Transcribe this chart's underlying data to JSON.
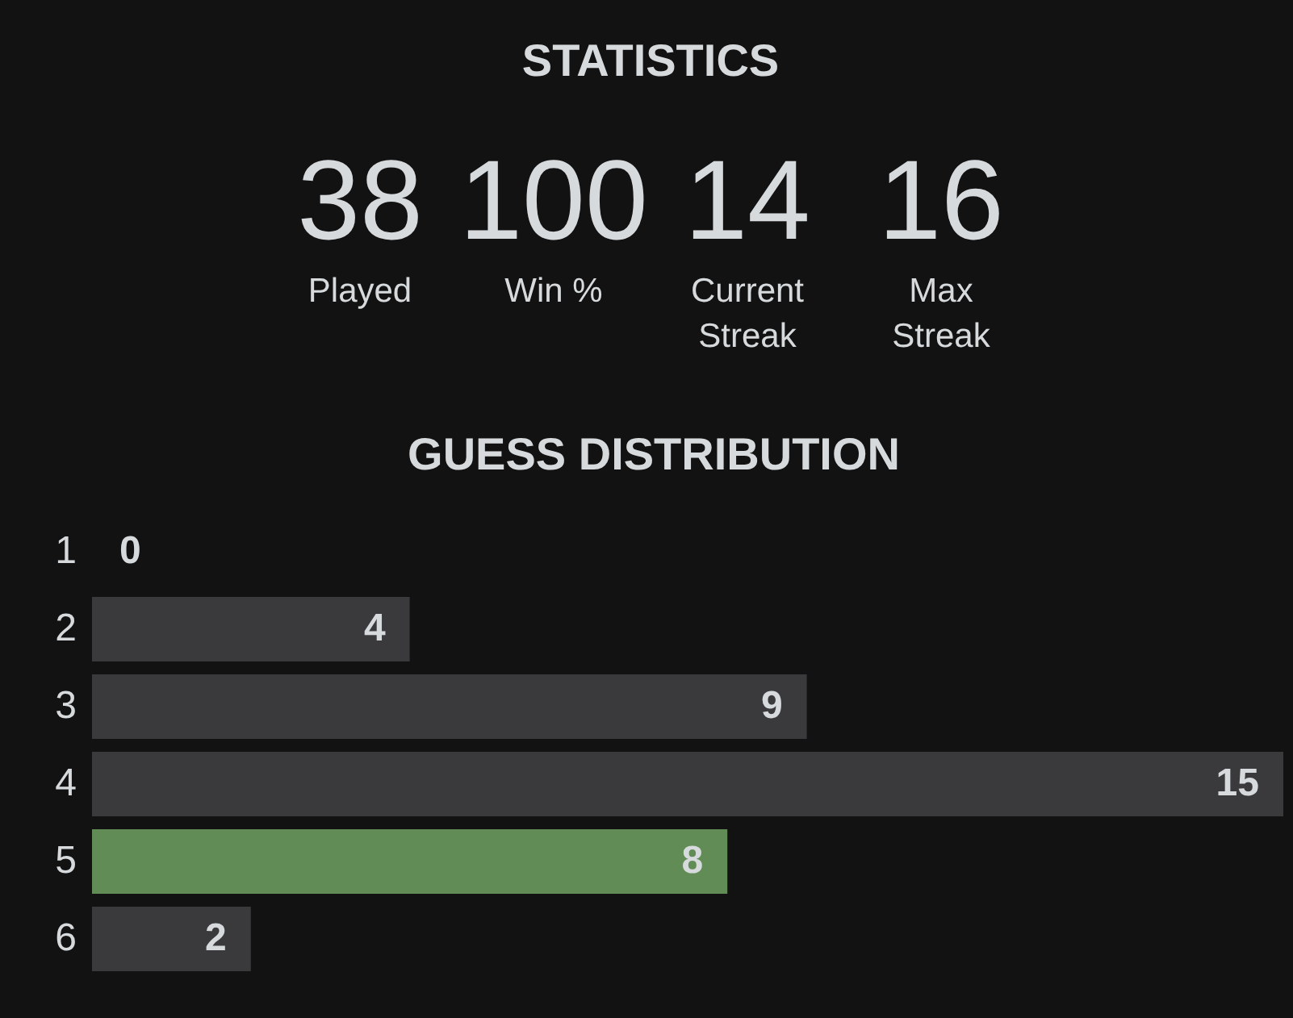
{
  "chart_data": [
    {
      "type": "other",
      "title": "STATISTICS",
      "categories": [
        "Played",
        "Win %",
        "Current Streak",
        "Max Streak"
      ],
      "values": [
        38,
        100,
        14,
        16
      ],
      "data_labels": true
    },
    {
      "type": "bar",
      "orientation": "horizontal",
      "title": "GUESS DISTRIBUTION",
      "categories": [
        "1",
        "2",
        "3",
        "4",
        "5",
        "6"
      ],
      "values": [
        0,
        4,
        9,
        15,
        8,
        2
      ],
      "colors": [
        "#3a3a3c",
        "#3a3a3c",
        "#3a3a3c",
        "#3a3a3c",
        "#618c55",
        "#3a3a3c"
      ],
      "xlim": [
        0,
        15
      ],
      "data_labels": true,
      "tick_labels": "y"
    }
  ]
}
